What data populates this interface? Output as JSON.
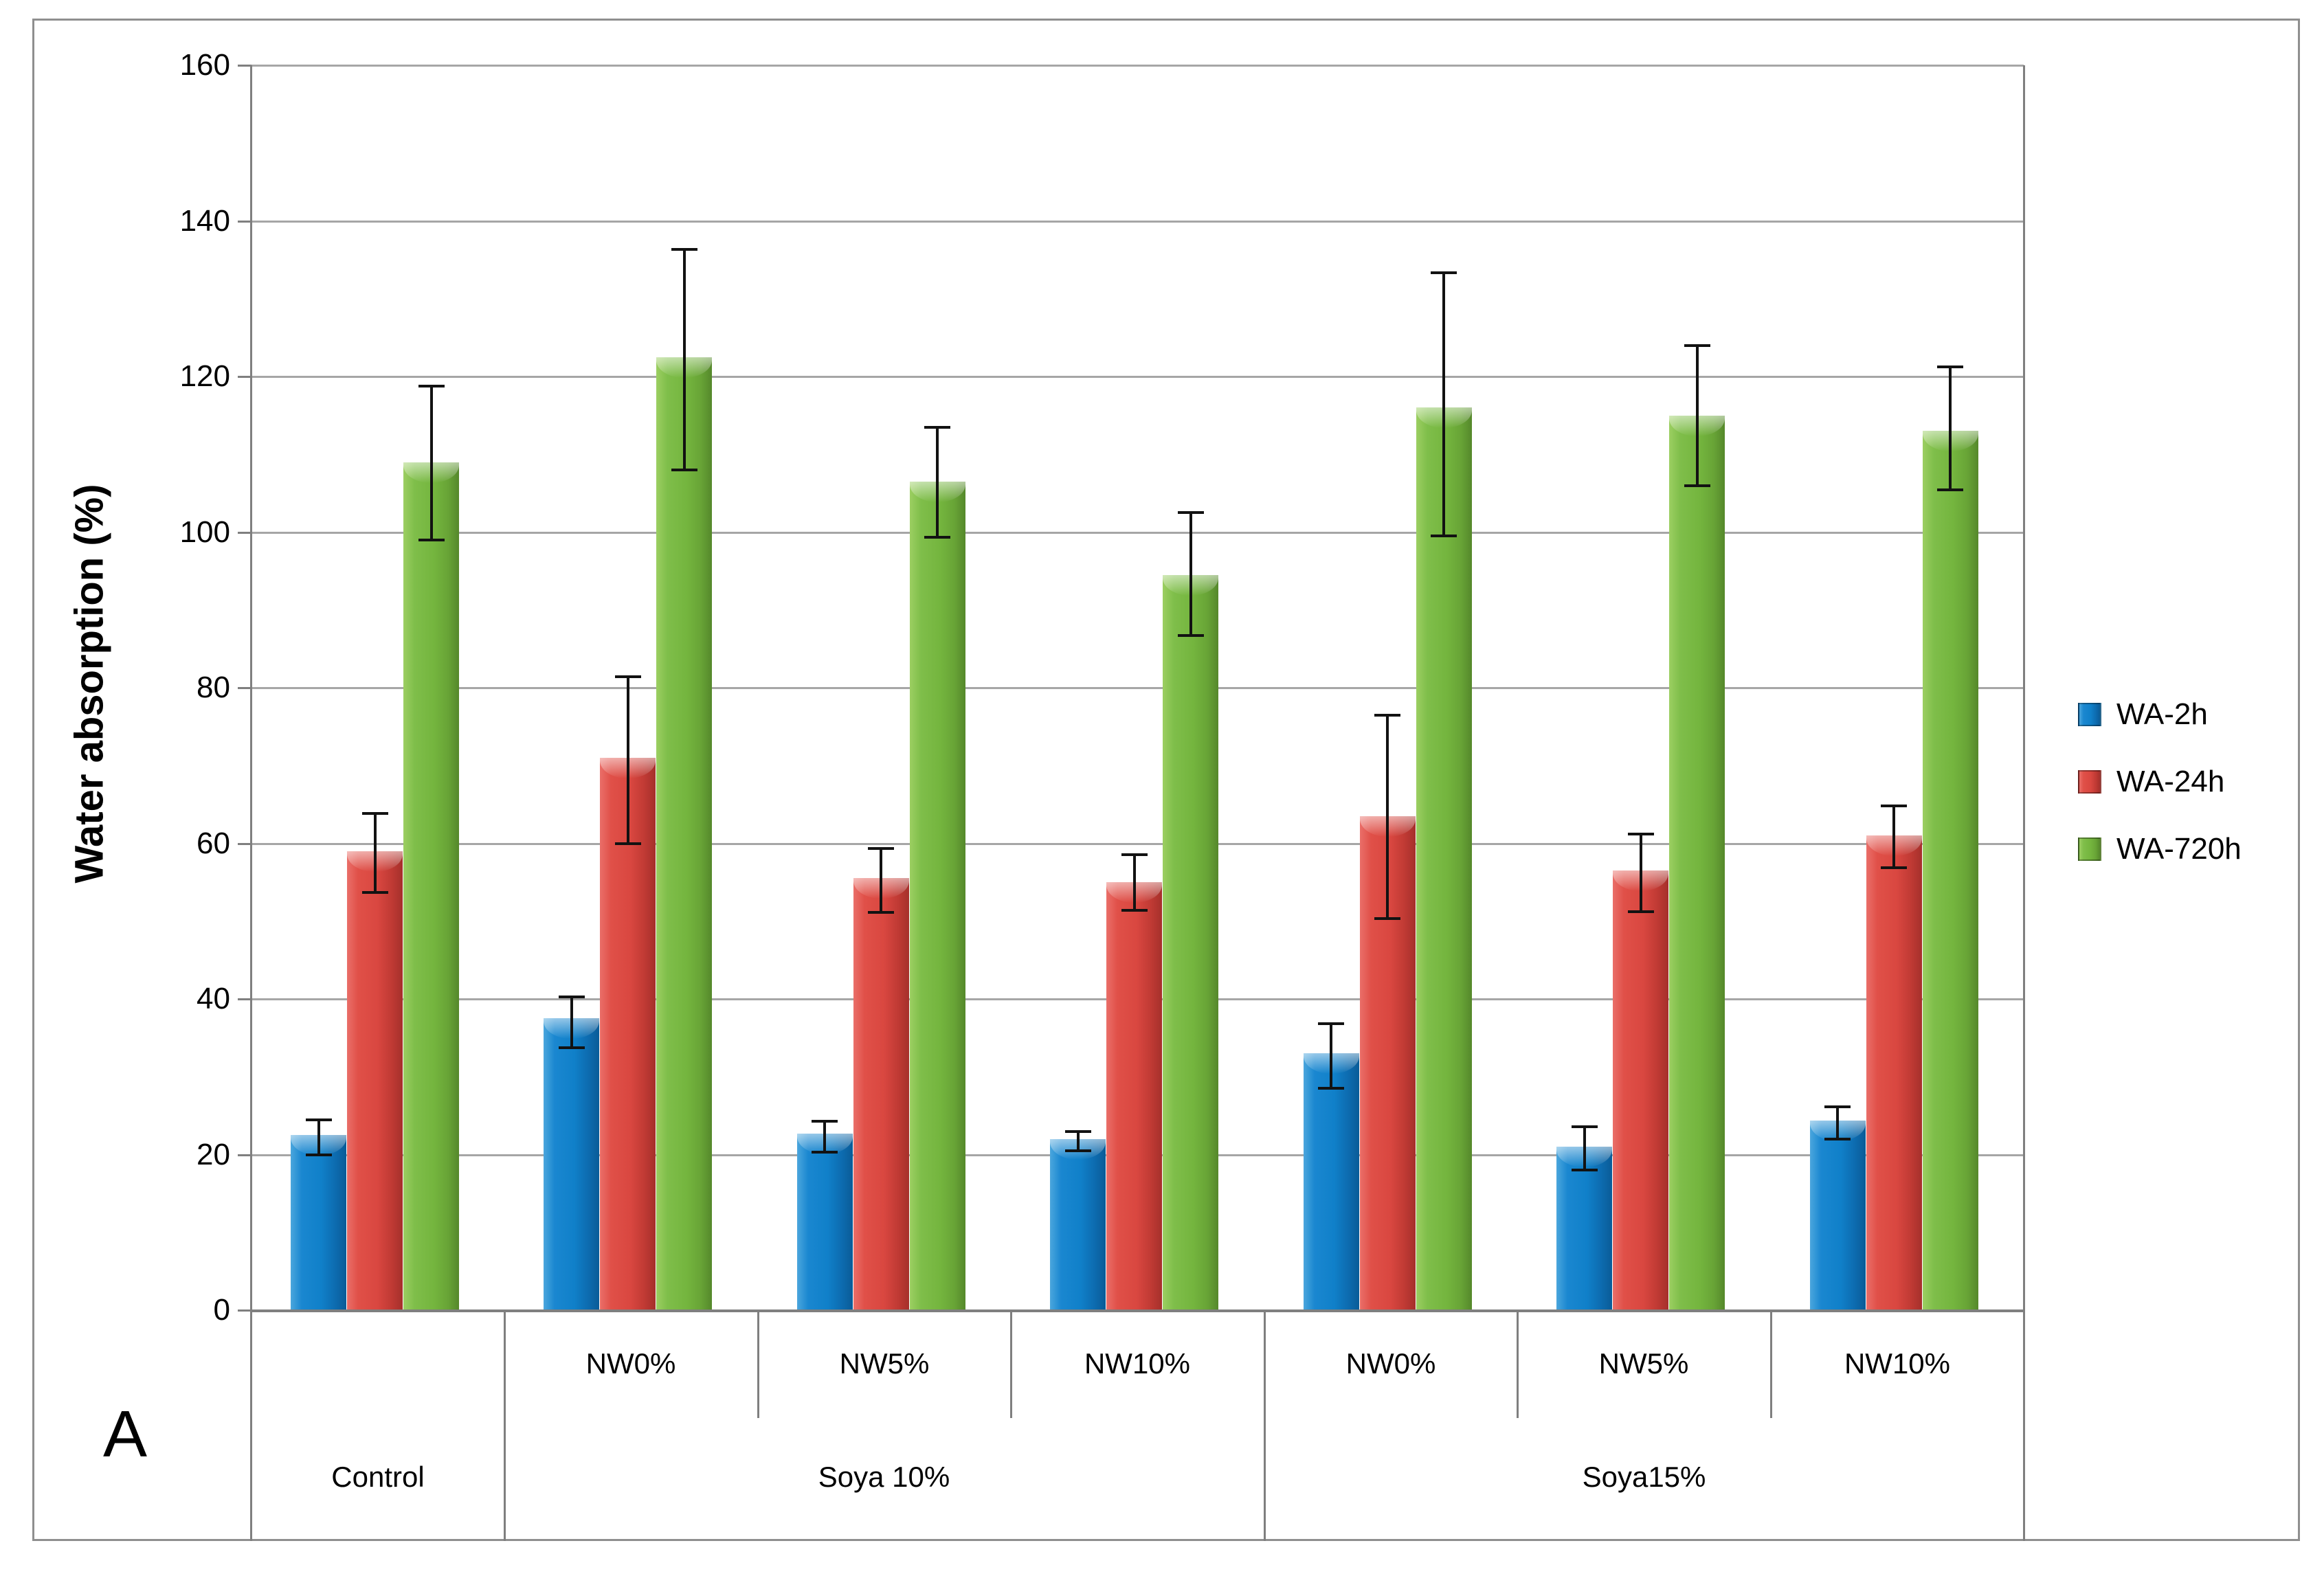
{
  "figure": {
    "panel_letter": "A",
    "y_axis_title": "Water absorption (%)"
  },
  "legend": [
    {
      "label": "WA-2h",
      "color": "#1080c9"
    },
    {
      "label": "WA-24h",
      "color": "#d94740"
    },
    {
      "label": "WA-720h",
      "color": "#74b53e"
    }
  ],
  "chart_data": {
    "type": "bar",
    "title": "",
    "xlabel": "",
    "ylabel": "Water absorption (%)",
    "ylim": [
      0,
      160
    ],
    "ytick_step": 20,
    "grid": true,
    "legend_position": "right-outside",
    "categories_row1": [
      "",
      "NW0%",
      "NW5%",
      "NW10%",
      "NW0%",
      "NW5%",
      "NW10%"
    ],
    "categories_row2": [
      {
        "label": "Control",
        "start": 0,
        "end": 1
      },
      {
        "label": "Soya 10%",
        "start": 1,
        "end": 4
      },
      {
        "label": "Soya15%",
        "start": 4,
        "end": 7
      }
    ],
    "series": [
      {
        "name": "WA-2h",
        "color": "#1080c9",
        "values": [
          22.5,
          37.5,
          22.7,
          22.0,
          33.0,
          21.0,
          24.4
        ],
        "err_plus": [
          2.0,
          2.8,
          1.6,
          1.0,
          3.8,
          2.6,
          1.7
        ],
        "err_minus": [
          2.5,
          3.8,
          2.4,
          1.5,
          4.5,
          3.0,
          2.4
        ]
      },
      {
        "name": "WA-24h",
        "color": "#d94740",
        "values": [
          59.0,
          71.0,
          55.5,
          55.0,
          63.5,
          56.5,
          61.0
        ],
        "err_plus": [
          4.8,
          10.4,
          3.8,
          3.5,
          13.0,
          4.7,
          3.8
        ],
        "err_minus": [
          5.3,
          11.0,
          4.4,
          3.6,
          13.2,
          5.3,
          4.1
        ]
      },
      {
        "name": "WA-720h",
        "color": "#74b53e",
        "values": [
          109.0,
          122.5,
          106.5,
          94.5,
          116.0,
          115.0,
          113.0
        ],
        "err_plus": [
          9.8,
          13.8,
          7.0,
          8.0,
          17.3,
          9.0,
          8.2
        ],
        "err_minus": [
          10.0,
          14.5,
          7.2,
          7.8,
          16.5,
          9.0,
          7.6
        ]
      }
    ]
  }
}
